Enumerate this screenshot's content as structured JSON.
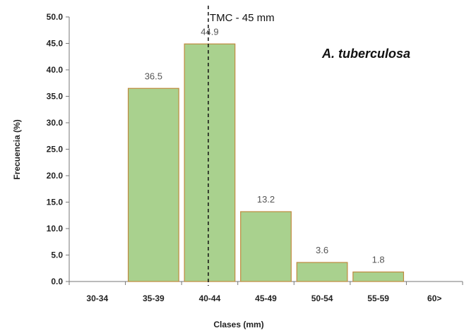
{
  "chart_data": {
    "type": "bar",
    "categories": [
      "30-34",
      "35-39",
      "40-44",
      "45-49",
      "50-54",
      "55-59",
      "60>"
    ],
    "values": [
      0,
      36.5,
      44.9,
      13.2,
      3.6,
      1.8,
      0
    ],
    "data_labels": [
      "",
      "36.5",
      "44.9",
      "13.2",
      "3.6",
      "1.8",
      ""
    ],
    "xlabel": "Clases (mm)",
    "ylabel": "Frecuencia (%)",
    "ylim": [
      0,
      50
    ],
    "yticks": [
      "0.0",
      "5.0",
      "10.0",
      "15.0",
      "20.0",
      "25.0",
      "30.0",
      "35.0",
      "40.0",
      "45.0",
      "50.0"
    ],
    "annotation": "A. tuberculosa",
    "reference_line": {
      "label": "TMC - 45 mm",
      "x_position_category_index": 2.5,
      "style": "dashed"
    },
    "grid": false,
    "bar_fill": "#a9d18e",
    "bar_stroke": "#c08a3e"
  }
}
